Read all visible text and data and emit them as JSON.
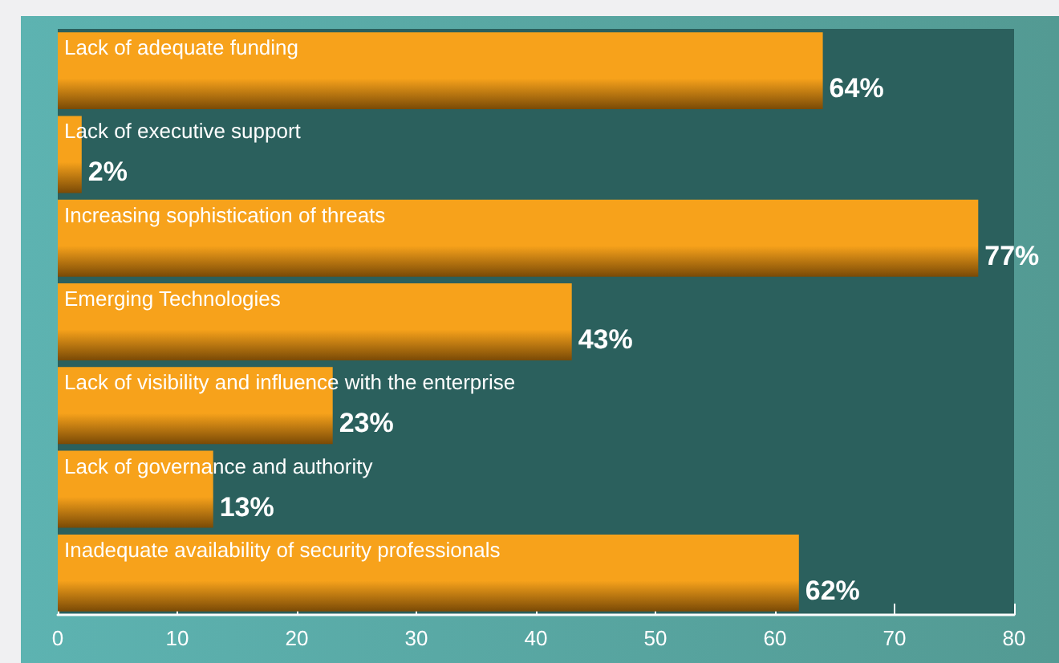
{
  "chart_data": {
    "type": "bar",
    "orientation": "horizontal",
    "categories": [
      "Lack of adequate funding",
      "Lack of executive support",
      "Increasing sophistication of threats",
      "Emerging Technologies",
      "Lack of visibility and influence with the enterprise",
      "Lack of governance and authority",
      "Inadequate availability of security professionals"
    ],
    "values": [
      64,
      2,
      77,
      43,
      23,
      13,
      62
    ],
    "value_labels": [
      "64%",
      "2%",
      "77%",
      "43%",
      "23%",
      "13%",
      "62%"
    ],
    "color": "#f7a21b",
    "xlim": [
      0,
      80
    ],
    "xticks": [
      0,
      10,
      20,
      30,
      40,
      50,
      60,
      70,
      80
    ],
    "grid": false
  }
}
